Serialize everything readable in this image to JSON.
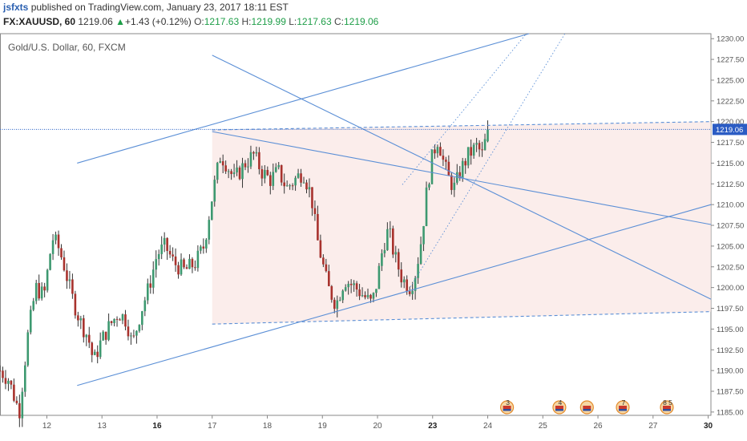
{
  "header": {
    "author": "jsfxts",
    "published_text": " published on TradingView.com, January 23, 2017 18:11 EST",
    "symbol": "FX:XAUUSD, 60",
    "last": "1219.06",
    "change_arrow": "▲",
    "change": "+1.43 (+0.12%)",
    "o_label": "O:",
    "o_value": "1217.63",
    "h_label": "H:",
    "h_value": "1219.99",
    "l_label": "L:",
    "l_value": "1217.63",
    "c_label": "C:",
    "c_value": "1219.06"
  },
  "chart_title": "Gold/U.S. Dollar, 60, FXCM",
  "price_badge": "1219.06",
  "colors": {
    "up": "#3d9970",
    "down": "#a8322d",
    "wick": "#333333",
    "trendline": "#5b8fd6",
    "shade": "#f9e6e2",
    "axis_text": "#555555"
  },
  "event_badges": [
    "3",
    "4",
    "",
    "7",
    "8 5"
  ],
  "event_icon": "us-flag-calendar-icon",
  "chart_data": {
    "type": "candlestick",
    "title": "Gold/U.S. Dollar, 60, FXCM",
    "y_ticks": [
      "1185.00",
      "1187.50",
      "1190.00",
      "1192.50",
      "1195.00",
      "1197.50",
      "1200.00",
      "1202.50",
      "1205.00",
      "1207.50",
      "1210.00",
      "1212.50",
      "1215.00",
      "1217.50",
      "1220.00",
      "1222.50",
      "1225.00",
      "1227.50",
      "1230.00"
    ],
    "ylim": [
      1184.6,
      1230.6
    ],
    "x_ticks": [
      {
        "label": "12",
        "x": 1.0
      },
      {
        "label": "13",
        "x": 2.0
      },
      {
        "label": "16",
        "x": 3.0
      },
      {
        "label": "17",
        "x": 4.0
      },
      {
        "label": "18",
        "x": 5.0
      },
      {
        "label": "19",
        "x": 6.0
      },
      {
        "label": "20",
        "x": 7.0
      },
      {
        "label": "23",
        "x": 8.0
      },
      {
        "label": "24",
        "x": 9.0
      },
      {
        "label": "25",
        "x": 10.0
      },
      {
        "label": "26",
        "x": 11.0
      },
      {
        "label": "27",
        "x": 12.0
      },
      {
        "label": "30",
        "x": 13.0
      }
    ],
    "bold_ticks": [
      "16",
      "23",
      "30"
    ],
    "xlim": [
      0.15,
      13.05
    ],
    "last_price": 1219.06,
    "path": [
      [
        0.15,
        1190
      ],
      [
        0.3,
        1189
      ],
      [
        0.4,
        1187
      ],
      [
        0.5,
        1185
      ],
      [
        0.65,
        1194
      ],
      [
        0.8,
        1200
      ],
      [
        0.95,
        1199
      ],
      [
        1.1,
        1206
      ],
      [
        1.2,
        1205
      ],
      [
        1.3,
        1203
      ],
      [
        1.45,
        1199
      ],
      [
        1.6,
        1196
      ],
      [
        1.75,
        1194
      ],
      [
        1.85,
        1191
      ],
      [
        1.95,
        1193
      ],
      [
        2.1,
        1195
      ],
      [
        2.3,
        1197
      ],
      [
        2.45,
        1196
      ],
      [
        2.55,
        1193
      ],
      [
        2.7,
        1197
      ],
      [
        2.85,
        1200
      ],
      [
        3.0,
        1204
      ],
      [
        3.15,
        1205
      ],
      [
        3.3,
        1203
      ],
      [
        3.5,
        1202
      ],
      [
        3.7,
        1203
      ],
      [
        3.85,
        1205
      ],
      [
        4.0,
        1211
      ],
      [
        4.15,
        1216
      ],
      [
        4.25,
        1215
      ],
      [
        4.4,
        1213
      ],
      [
        4.6,
        1215
      ],
      [
        4.75,
        1216
      ],
      [
        4.9,
        1214
      ],
      [
        5.05,
        1213
      ],
      [
        5.2,
        1214
      ],
      [
        5.35,
        1212
      ],
      [
        5.5,
        1213
      ],
      [
        5.65,
        1214
      ],
      [
        5.8,
        1211
      ],
      [
        5.9,
        1206
      ],
      [
        6.0,
        1203
      ],
      [
        6.1,
        1200
      ],
      [
        6.25,
        1198
      ],
      [
        6.4,
        1201
      ],
      [
        6.6,
        1200
      ],
      [
        6.75,
        1199
      ],
      [
        6.9,
        1198
      ],
      [
        7.0,
        1201
      ],
      [
        7.1,
        1205
      ],
      [
        7.2,
        1207
      ],
      [
        7.3,
        1204
      ],
      [
        7.45,
        1201
      ],
      [
        7.6,
        1200
      ],
      [
        7.7,
        1202
      ],
      [
        7.8,
        1206
      ],
      [
        7.9,
        1212
      ],
      [
        8.0,
        1216
      ],
      [
        8.1,
        1218
      ],
      [
        8.2,
        1215
      ],
      [
        8.3,
        1213
      ],
      [
        8.4,
        1212
      ],
      [
        8.5,
        1214
      ],
      [
        8.65,
        1216
      ],
      [
        8.8,
        1217
      ],
      [
        8.9,
        1216
      ],
      [
        9.0,
        1219
      ]
    ],
    "trendlines": [
      {
        "name": "upper-rising-line",
        "from": [
          1.55,
          1215
        ],
        "to": [
          9.75,
          1230.6
        ],
        "style": "solid"
      },
      {
        "name": "channel-top-line",
        "from": [
          4.0,
          1218.8
        ],
        "to": [
          13.05,
          1207.6
        ],
        "style": "solid"
      },
      {
        "name": "channel-bottom-line",
        "from": [
          4.0,
          1228
        ],
        "to": [
          13.05,
          1198.6
        ],
        "style": "solid"
      },
      {
        "name": "lower-rising-line",
        "from": [
          1.55,
          1188.2
        ],
        "to": [
          13.05,
          1210
        ],
        "style": "solid"
      },
      {
        "name": "upper-horizontal-line",
        "from": [
          4.0,
          1219
        ],
        "to": [
          13.05,
          1220
        ],
        "style": "dashed"
      },
      {
        "name": "lower-horizontal-line",
        "from": [
          4.0,
          1195.6
        ],
        "to": [
          13.05,
          1197.1
        ],
        "style": "dashed"
      },
      {
        "name": "dotted-channel-line-a",
        "from": [
          7.45,
          1212.4
        ],
        "to": [
          9.7,
          1230.6
        ],
        "style": "dotted"
      },
      {
        "name": "dotted-channel-line-b",
        "from": [
          7.6,
          1200.1
        ],
        "to": [
          10.4,
          1230.6
        ],
        "style": "dotted"
      }
    ],
    "shaded_area": [
      [
        4.0,
        1219
      ],
      [
        13.05,
        1220
      ],
      [
        13.05,
        1197.1
      ],
      [
        4.0,
        1195.6
      ]
    ],
    "events_x": [
      9.35,
      10.3,
      10.8,
      11.45,
      12.25
    ]
  }
}
